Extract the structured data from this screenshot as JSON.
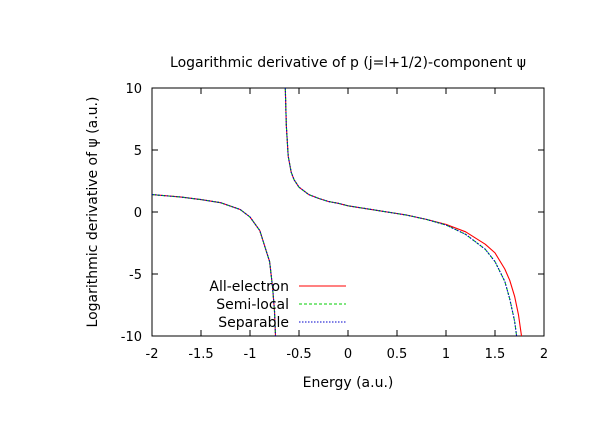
{
  "chart_data": {
    "type": "line",
    "title": "Logarithmic derivative of p (j=l+1/2)-component ψ",
    "xlabel": "Energy (a.u.)",
    "ylabel": "Logarithmic derivative of ψ (a.u.)",
    "xlim": [
      -2,
      2
    ],
    "ylim": [
      -10,
      10
    ],
    "xticks": [
      "-2",
      "-1.5",
      "-1",
      "-0.5",
      "0",
      "0.5",
      "1",
      "1.5",
      "2"
    ],
    "yticks": [
      "10",
      "5",
      "0",
      "-5",
      "-10"
    ],
    "grid": false,
    "legend_position": "bottom-left",
    "series": [
      {
        "name": "All-electron",
        "color": "#ff0000",
        "dash": "solid",
        "branches": [
          [
            [
              -2.0,
              1.4
            ],
            [
              -1.7,
              1.2
            ],
            [
              -1.5,
              1.0
            ],
            [
              -1.3,
              0.75
            ],
            [
              -1.1,
              0.2
            ],
            [
              -1.0,
              -0.4
            ],
            [
              -0.9,
              -1.5
            ],
            [
              -0.8,
              -4.0
            ],
            [
              -0.77,
              -6.0
            ],
            [
              -0.75,
              -8.0
            ],
            [
              -0.74,
              -10.0
            ]
          ],
          [
            [
              -0.64,
              10.0
            ],
            [
              -0.63,
              7.0
            ],
            [
              -0.61,
              4.5
            ],
            [
              -0.58,
              3.2
            ],
            [
              -0.55,
              2.6
            ],
            [
              -0.5,
              2.0
            ],
            [
              -0.4,
              1.4
            ],
            [
              -0.3,
              1.1
            ],
            [
              -0.2,
              0.85
            ],
            [
              -0.1,
              0.7
            ],
            [
              0.0,
              0.5
            ],
            [
              0.2,
              0.25
            ],
            [
              0.4,
              0.0
            ],
            [
              0.6,
              -0.25
            ],
            [
              0.8,
              -0.6
            ],
            [
              1.0,
              -1.0
            ],
            [
              1.2,
              -1.6
            ],
            [
              1.4,
              -2.6
            ],
            [
              1.5,
              -3.3
            ],
            [
              1.6,
              -4.6
            ],
            [
              1.65,
              -5.5
            ],
            [
              1.7,
              -6.8
            ],
            [
              1.74,
              -8.3
            ],
            [
              1.77,
              -10.0
            ]
          ]
        ]
      },
      {
        "name": "Semi-local",
        "color": "#00cc00",
        "dash": "dashed",
        "branches": [
          [
            [
              -2.0,
              1.4
            ],
            [
              -1.7,
              1.2
            ],
            [
              -1.5,
              1.0
            ],
            [
              -1.3,
              0.75
            ],
            [
              -1.1,
              0.2
            ],
            [
              -1.0,
              -0.4
            ],
            [
              -0.9,
              -1.5
            ],
            [
              -0.8,
              -4.0
            ],
            [
              -0.77,
              -6.0
            ],
            [
              -0.75,
              -8.0
            ],
            [
              -0.74,
              -10.0
            ]
          ],
          [
            [
              -0.64,
              10.0
            ],
            [
              -0.63,
              7.0
            ],
            [
              -0.61,
              4.5
            ],
            [
              -0.58,
              3.2
            ],
            [
              -0.55,
              2.6
            ],
            [
              -0.5,
              2.0
            ],
            [
              -0.4,
              1.4
            ],
            [
              -0.3,
              1.1
            ],
            [
              -0.2,
              0.85
            ],
            [
              -0.1,
              0.7
            ],
            [
              0.0,
              0.5
            ],
            [
              0.2,
              0.25
            ],
            [
              0.4,
              0.0
            ],
            [
              0.6,
              -0.25
            ],
            [
              0.8,
              -0.6
            ],
            [
              1.0,
              -1.05
            ],
            [
              1.2,
              -1.8
            ],
            [
              1.4,
              -3.0
            ],
            [
              1.5,
              -4.0
            ],
            [
              1.6,
              -5.6
            ],
            [
              1.65,
              -7.0
            ],
            [
              1.7,
              -8.8
            ],
            [
              1.72,
              -10.0
            ]
          ]
        ]
      },
      {
        "name": "Separable",
        "color": "#0000cc",
        "dash": "dotted",
        "branches": [
          [
            [
              -2.0,
              1.4
            ],
            [
              -1.7,
              1.2
            ],
            [
              -1.5,
              1.0
            ],
            [
              -1.3,
              0.75
            ],
            [
              -1.1,
              0.2
            ],
            [
              -1.0,
              -0.4
            ],
            [
              -0.9,
              -1.5
            ],
            [
              -0.8,
              -4.0
            ],
            [
              -0.77,
              -6.0
            ],
            [
              -0.75,
              -8.0
            ],
            [
              -0.74,
              -10.0
            ]
          ],
          [
            [
              -0.64,
              10.0
            ],
            [
              -0.63,
              7.0
            ],
            [
              -0.61,
              4.5
            ],
            [
              -0.58,
              3.2
            ],
            [
              -0.55,
              2.6
            ],
            [
              -0.5,
              2.0
            ],
            [
              -0.4,
              1.4
            ],
            [
              -0.3,
              1.1
            ],
            [
              -0.2,
              0.85
            ],
            [
              -0.1,
              0.7
            ],
            [
              0.0,
              0.5
            ],
            [
              0.2,
              0.25
            ],
            [
              0.4,
              0.0
            ],
            [
              0.6,
              -0.25
            ],
            [
              0.8,
              -0.6
            ],
            [
              1.0,
              -1.05
            ],
            [
              1.2,
              -1.8
            ],
            [
              1.4,
              -3.0
            ],
            [
              1.5,
              -4.0
            ],
            [
              1.6,
              -5.6
            ],
            [
              1.65,
              -7.0
            ],
            [
              1.7,
              -8.8
            ],
            [
              1.72,
              -10.0
            ]
          ]
        ]
      }
    ]
  }
}
